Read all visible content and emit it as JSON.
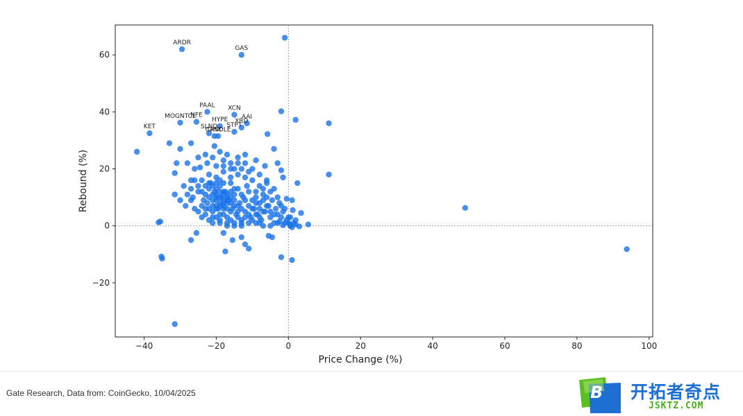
{
  "chart_data": {
    "type": "scatter",
    "xlabel": "Price Change (%)",
    "ylabel": "Rebound (%)",
    "xlim": [
      -48,
      101
    ],
    "ylim": [
      -39,
      70.5
    ],
    "xticks": [
      -40,
      -20,
      0,
      20,
      40,
      60,
      80,
      100
    ],
    "yticks": [
      -20,
      0,
      20,
      40,
      60
    ],
    "reference_lines": {
      "x": 0,
      "y": 0
    },
    "point_color": "#1a73e8",
    "labeled_points": [
      {
        "label": "ARDR",
        "x": -29.5,
        "y": 62
      },
      {
        "label": "GAS",
        "x": -13,
        "y": 60
      },
      {
        "label": "PAAL",
        "x": -22.5,
        "y": 40
      },
      {
        "label": "XCN",
        "x": -15,
        "y": 39
      },
      {
        "label": "MOGNTCL",
        "x": -30,
        "y": 36.2
      },
      {
        "label": "NFE",
        "x": -25.5,
        "y": 36.5
      },
      {
        "label": "HYPE",
        "x": -19,
        "y": 35
      },
      {
        "label": "AAI",
        "x": -11.5,
        "y": 36
      },
      {
        "label": "XRD",
        "x": -13,
        "y": 34.5
      },
      {
        "label": "STPT",
        "x": -15,
        "y": 33
      },
      {
        "label": "SLND",
        "x": -22,
        "y": 32.5
      },
      {
        "label": "GHX",
        "x": -20.5,
        "y": 31.5
      },
      {
        "label": "CANDLE",
        "x": -19.5,
        "y": 31.5
      },
      {
        "label": "KET",
        "x": -38.5,
        "y": 32.5
      }
    ],
    "points": [
      [
        -1,
        66
      ],
      [
        2,
        37.2
      ],
      [
        11.2,
        36
      ],
      [
        -2,
        40.2
      ],
      [
        -5.8,
        32.2
      ],
      [
        -42,
        26
      ],
      [
        -33,
        29
      ],
      [
        -31,
        22
      ],
      [
        -31.5,
        18.5
      ],
      [
        -27,
        29
      ],
      [
        -30,
        27
      ],
      [
        -24.5,
        20.5
      ],
      [
        -22.5,
        22
      ],
      [
        -20.5,
        28
      ],
      [
        -18,
        21
      ],
      [
        -14,
        22
      ],
      [
        -9,
        23
      ],
      [
        -6.5,
        21
      ],
      [
        -4,
        27
      ],
      [
        -3,
        22
      ],
      [
        -2,
        19.5
      ],
      [
        -1.5,
        17
      ],
      [
        -0.5,
        9.5
      ],
      [
        1,
        9
      ],
      [
        2.5,
        15
      ],
      [
        3.5,
        4.5
      ],
      [
        5.5,
        0.5
      ],
      [
        1.2,
        5.5
      ],
      [
        0.5,
        3
      ],
      [
        -0.5,
        2
      ],
      [
        0.5,
        0.5
      ],
      [
        1,
        -0.5
      ],
      [
        2,
        0.5
      ],
      [
        3,
        -0.2
      ],
      [
        -1.5,
        0.2
      ],
      [
        -2.5,
        1.5
      ],
      [
        -4.5,
        -4
      ],
      [
        -5.5,
        -3.5
      ],
      [
        -8,
        1
      ],
      [
        -11,
        -8
      ],
      [
        -12,
        -6.5
      ],
      [
        -13,
        -4
      ],
      [
        -15.5,
        -5
      ],
      [
        -17.5,
        -9
      ],
      [
        -18,
        -2.5
      ],
      [
        -25.5,
        -2.5
      ],
      [
        -27,
        -5
      ],
      [
        -35.5,
        1.5
      ],
      [
        -36,
        1.2
      ],
      [
        -35,
        -11.5
      ],
      [
        -35.2,
        -10.8
      ],
      [
        -31.5,
        -34.5
      ],
      [
        -2,
        -11
      ],
      [
        1,
        -12
      ],
      [
        11.2,
        18
      ],
      [
        49,
        6.3
      ],
      [
        93.8,
        -8.2
      ],
      [
        -31.5,
        11
      ],
      [
        -28.5,
        7
      ],
      [
        -27,
        13
      ],
      [
        -26.5,
        10
      ],
      [
        -25,
        14
      ],
      [
        -24,
        16
      ],
      [
        -23,
        11
      ],
      [
        -22.5,
        8
      ],
      [
        -22,
        13
      ],
      [
        -21.5,
        15
      ],
      [
        -21,
        5
      ],
      [
        -20.5,
        12
      ],
      [
        -20,
        9
      ],
      [
        -19.5,
        6
      ],
      [
        -19,
        14
      ],
      [
        -18.5,
        10
      ],
      [
        -18,
        7
      ],
      [
        -17.5,
        12
      ],
      [
        -17,
        3
      ],
      [
        -16.5,
        9
      ],
      [
        -16,
        15
      ],
      [
        -15.5,
        6
      ],
      [
        -15,
        11
      ],
      [
        -14.5,
        4
      ],
      [
        -14,
        13
      ],
      [
        -13.5,
        8
      ],
      [
        -13,
        2
      ],
      [
        -12.5,
        10
      ],
      [
        -12,
        5
      ],
      [
        -11.5,
        14
      ],
      [
        -11,
        7
      ],
      [
        -10.5,
        3
      ],
      [
        -10,
        9
      ],
      [
        -9.5,
        6
      ],
      [
        -9,
        12
      ],
      [
        -8.5,
        4
      ],
      [
        -8,
        8
      ],
      [
        -7.5,
        2
      ],
      [
        -7,
        11
      ],
      [
        -6.5,
        5
      ],
      [
        -6,
        15
      ],
      [
        -5.5,
        7
      ],
      [
        -5,
        3
      ],
      [
        -4.5,
        9
      ],
      [
        -4,
        1
      ],
      [
        -3.5,
        6
      ],
      [
        -3,
        4
      ],
      [
        -2.5,
        8
      ],
      [
        -2,
        3
      ],
      [
        -1.5,
        5
      ],
      [
        -1,
        1
      ],
      [
        -24,
        12
      ],
      [
        -23.5,
        9
      ],
      [
        -22,
        10
      ],
      [
        -21,
        11
      ],
      [
        -20,
        13
      ],
      [
        -19,
        8
      ],
      [
        -18,
        12
      ],
      [
        -17,
        10
      ],
      [
        -16,
        8
      ],
      [
        -15,
        9
      ],
      [
        -14,
        7
      ],
      [
        -13,
        11
      ],
      [
        -12,
        9
      ],
      [
        -11,
        12
      ],
      [
        -10,
        6
      ],
      [
        -9,
        8
      ],
      [
        -8,
        6
      ],
      [
        -7,
        9
      ],
      [
        -6,
        10
      ],
      [
        -5,
        12
      ],
      [
        -26,
        16
      ],
      [
        -25,
        12
      ],
      [
        -24,
        7
      ],
      [
        -23,
        4
      ],
      [
        -22,
        2
      ],
      [
        -21,
        1
      ],
      [
        -20,
        3
      ],
      [
        -19,
        2
      ],
      [
        -18,
        4
      ],
      [
        -17,
        1
      ],
      [
        -16,
        2
      ],
      [
        -15,
        1
      ],
      [
        -14,
        3
      ],
      [
        -13,
        1
      ],
      [
        -22,
        18
      ],
      [
        -20,
        17
      ],
      [
        -18,
        19
      ],
      [
        -16,
        17
      ],
      [
        -14,
        18
      ],
      [
        -12,
        17
      ],
      [
        -10,
        16
      ],
      [
        -8,
        14
      ],
      [
        -25,
        24
      ],
      [
        -23,
        25
      ],
      [
        -21,
        24
      ],
      [
        -19,
        26
      ],
      [
        -17,
        25
      ],
      [
        -15,
        20
      ],
      [
        -13,
        20
      ],
      [
        -11,
        19
      ],
      [
        -28,
        22
      ],
      [
        -27,
        16
      ],
      [
        -29,
        14
      ],
      [
        -30,
        9
      ],
      [
        -28,
        11
      ],
      [
        -26,
        6
      ],
      [
        -24,
        3
      ],
      [
        -20,
        6
      ],
      [
        -19,
        4
      ],
      [
        -18,
        6
      ],
      [
        -17,
        8
      ],
      [
        -16,
        5
      ],
      [
        -15,
        7
      ],
      [
        -14,
        5
      ],
      [
        -13,
        6
      ],
      [
        -12,
        3
      ],
      [
        -11,
        4
      ],
      [
        -10,
        2
      ],
      [
        -9,
        4
      ],
      [
        -8,
        3
      ],
      [
        -7,
        5
      ],
      [
        -6,
        7
      ],
      [
        -5,
        5
      ],
      [
        -4,
        4
      ],
      [
        -20,
        11
      ],
      [
        -19,
        12
      ],
      [
        -18,
        11
      ],
      [
        -17,
        11
      ],
      [
        -16,
        12
      ],
      [
        -15,
        13
      ],
      [
        -21,
        9
      ],
      [
        -20,
        10
      ],
      [
        -19,
        10
      ],
      [
        -18,
        9
      ],
      [
        -17,
        9
      ],
      [
        -16,
        10
      ],
      [
        -22,
        6
      ],
      [
        -21,
        7
      ],
      [
        -20,
        7
      ],
      [
        -19,
        7
      ],
      [
        -18,
        8
      ],
      [
        -17,
        6
      ],
      [
        -23,
        14
      ],
      [
        -22,
        15
      ],
      [
        -21,
        14
      ],
      [
        -20,
        15
      ],
      [
        -19,
        16
      ],
      [
        -18,
        15
      ],
      [
        -16,
        22
      ],
      [
        -14,
        24
      ],
      [
        -12,
        25
      ],
      [
        -10,
        20
      ],
      [
        -8,
        18
      ],
      [
        -6,
        16
      ],
      [
        -4,
        13
      ],
      [
        -3,
        10
      ],
      [
        -2,
        7
      ],
      [
        -1,
        6
      ],
      [
        0,
        3
      ],
      [
        0,
        1
      ],
      [
        0.5,
        0
      ],
      [
        1.5,
        1
      ],
      [
        2,
        2
      ],
      [
        -26,
        20
      ],
      [
        -27,
        9
      ],
      [
        -25,
        5
      ],
      [
        -23,
        6
      ],
      [
        -21,
        3
      ],
      [
        -19,
        1
      ],
      [
        -17,
        0
      ],
      [
        -15,
        0
      ],
      [
        -13,
        0
      ],
      [
        -11,
        1
      ],
      [
        -9,
        1
      ],
      [
        -7,
        0
      ],
      [
        -5,
        0
      ],
      [
        -3,
        1
      ],
      [
        -20,
        21
      ],
      [
        -18,
        23
      ],
      [
        -16,
        20
      ],
      [
        -12,
        22
      ],
      [
        -9,
        10
      ],
      [
        -7,
        13
      ]
    ]
  },
  "footer": {
    "source": "Gate Research, Data from: CoinGecko, 10/04/2025"
  },
  "logo": {
    "icon_letter": "B",
    "text": "开拓者奇点",
    "subtext": "JSKTZ.COM"
  }
}
